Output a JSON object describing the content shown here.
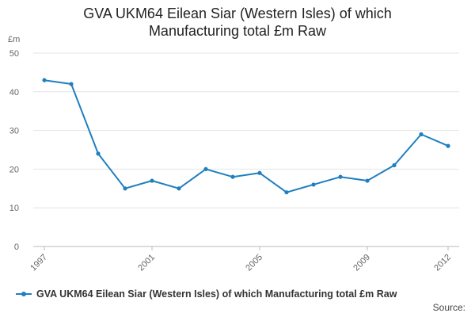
{
  "chart_data": {
    "type": "line",
    "title": "GVA UKM64 Eilean Siar (Western Isles) of which Manufacturing total £m Raw",
    "title_lines": [
      "GVA UKM64 Eilean Siar (Western Isles) of which",
      "Manufacturing total £m Raw"
    ],
    "ylabel": "£m",
    "ylim": [
      0,
      50
    ],
    "yticks": [
      0,
      10,
      20,
      30,
      40,
      50
    ],
    "xlim": [
      1997,
      2012
    ],
    "xticks": [
      1997,
      2001,
      2005,
      2009,
      2012
    ],
    "grid": true,
    "legend_position": "bottom",
    "color": "#1f7fbf",
    "series": [
      {
        "name": "GVA UKM64 Eilean Siar (Western Isles) of which Manufacturing total £m Raw",
        "x": [
          1997,
          1998,
          1999,
          2000,
          2001,
          2002,
          2003,
          2004,
          2005,
          2006,
          2007,
          2008,
          2009,
          2010,
          2011,
          2012
        ],
        "values": [
          43,
          42,
          24,
          15,
          17,
          15,
          20,
          18,
          19,
          14,
          16,
          18,
          17,
          21,
          29,
          26
        ]
      }
    ],
    "source_label": "Source:"
  }
}
